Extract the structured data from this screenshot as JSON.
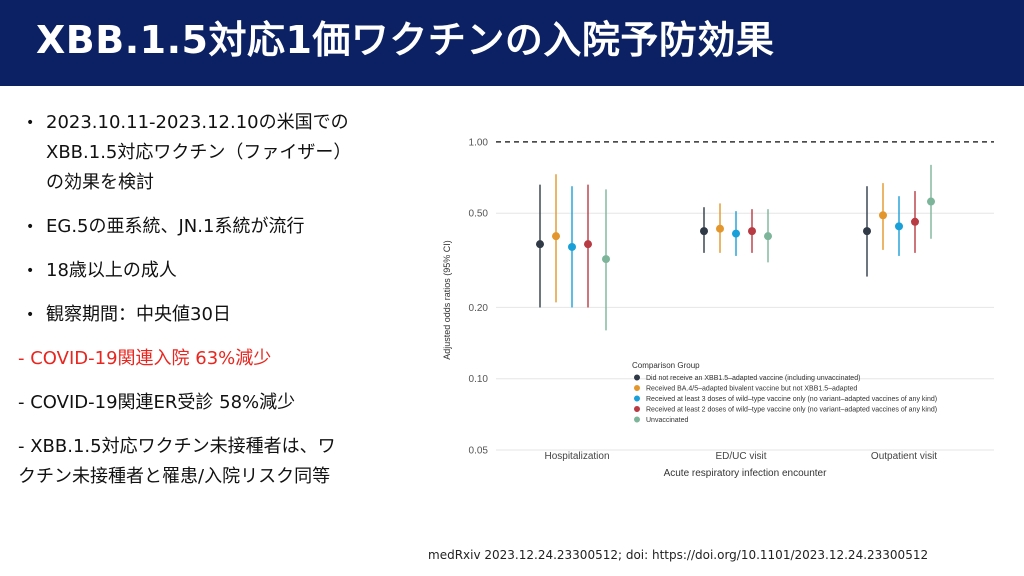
{
  "header": {
    "title": "XBB.1.5対応1価ワクチンの入院予防効果",
    "bg_color": "#0b2163"
  },
  "bullets": [
    {
      "lines": [
        "2023.10.11-2023.12.10の米国での",
        "XBB.1.5対応ワクチン（ファイザー）",
        "の効果を検討"
      ]
    },
    {
      "lines": [
        "EG.5の亜系統、JN.1系統が流行"
      ]
    },
    {
      "lines": [
        "18歳以上の成人"
      ]
    },
    {
      "lines": [
        "観察期間：中央値30日"
      ]
    }
  ],
  "dash_items": [
    {
      "lines": [
        "- COVID-19関連入院  63%減少"
      ],
      "highlight": true
    },
    {
      "lines": [
        "- COVID-19関連ER受診  58%減少"
      ],
      "highlight": false
    },
    {
      "lines": [
        "- XBB.1.5対応ワクチン未接種者は、ワ",
        "クチン未接種者と罹患/入院リスク同等"
      ],
      "highlight": false
    }
  ],
  "citation": "medRxiv 2023.12.24.23300512; doi: https://doi.org/10.1101/2023.12.24.23300512",
  "chart_data": {
    "type": "scatter",
    "subtype": "dot-and-whisker (log scale)",
    "title": "",
    "xlabel": "Acute respiratory infection encounter",
    "ylabel": "Adjusted odds ratios (95% CI)",
    "ylim": [
      0.05,
      1.1
    ],
    "yscale": "log",
    "yticks": [
      0.05,
      0.1,
      0.2,
      0.5,
      1.0
    ],
    "ytick_labels": [
      "0.05",
      "0.10",
      "0.20",
      "0.50",
      "1.00"
    ],
    "reference_line": 1.0,
    "categories": [
      "Hospitalization",
      "ED/UC visit",
      "Outpatient visit"
    ],
    "legend_title": "Comparison Group",
    "legend_position": "bottom-right",
    "series": [
      {
        "name": "Did not receive an XBB1.5–adapted vaccine (including unvaccinated)",
        "color": "#2f3a46",
        "points": [
          {
            "est": 0.37,
            "lo": 0.2,
            "hi": 0.66
          },
          {
            "est": 0.42,
            "lo": 0.34,
            "hi": 0.53
          },
          {
            "est": 0.42,
            "lo": 0.27,
            "hi": 0.65
          }
        ]
      },
      {
        "name": "Received BA.4/5–adapted bivalent vaccine but not XBB1.5–adapted",
        "color": "#e3962b",
        "points": [
          {
            "est": 0.4,
            "lo": 0.21,
            "hi": 0.73
          },
          {
            "est": 0.43,
            "lo": 0.34,
            "hi": 0.55
          },
          {
            "est": 0.49,
            "lo": 0.35,
            "hi": 0.67
          }
        ]
      },
      {
        "name": "Received at least 3 doses of wild–type vaccine only (no variant–adapted vaccines of any kind)",
        "color": "#1aa0d8",
        "points": [
          {
            "est": 0.36,
            "lo": 0.2,
            "hi": 0.65
          },
          {
            "est": 0.41,
            "lo": 0.33,
            "hi": 0.51
          },
          {
            "est": 0.44,
            "lo": 0.33,
            "hi": 0.59
          }
        ]
      },
      {
        "name": "Received at least 2 doses of wild–type vaccine only (no variant–adapted vaccines of any kind)",
        "color": "#b83a43",
        "points": [
          {
            "est": 0.37,
            "lo": 0.2,
            "hi": 0.66
          },
          {
            "est": 0.42,
            "lo": 0.34,
            "hi": 0.52
          },
          {
            "est": 0.46,
            "lo": 0.34,
            "hi": 0.62
          }
        ]
      },
      {
        "name": "Unvaccinated",
        "color": "#7db59a",
        "points": [
          {
            "est": 0.32,
            "lo": 0.16,
            "hi": 0.63
          },
          {
            "est": 0.4,
            "lo": 0.31,
            "hi": 0.52
          },
          {
            "est": 0.56,
            "lo": 0.39,
            "hi": 0.8
          }
        ]
      }
    ]
  }
}
